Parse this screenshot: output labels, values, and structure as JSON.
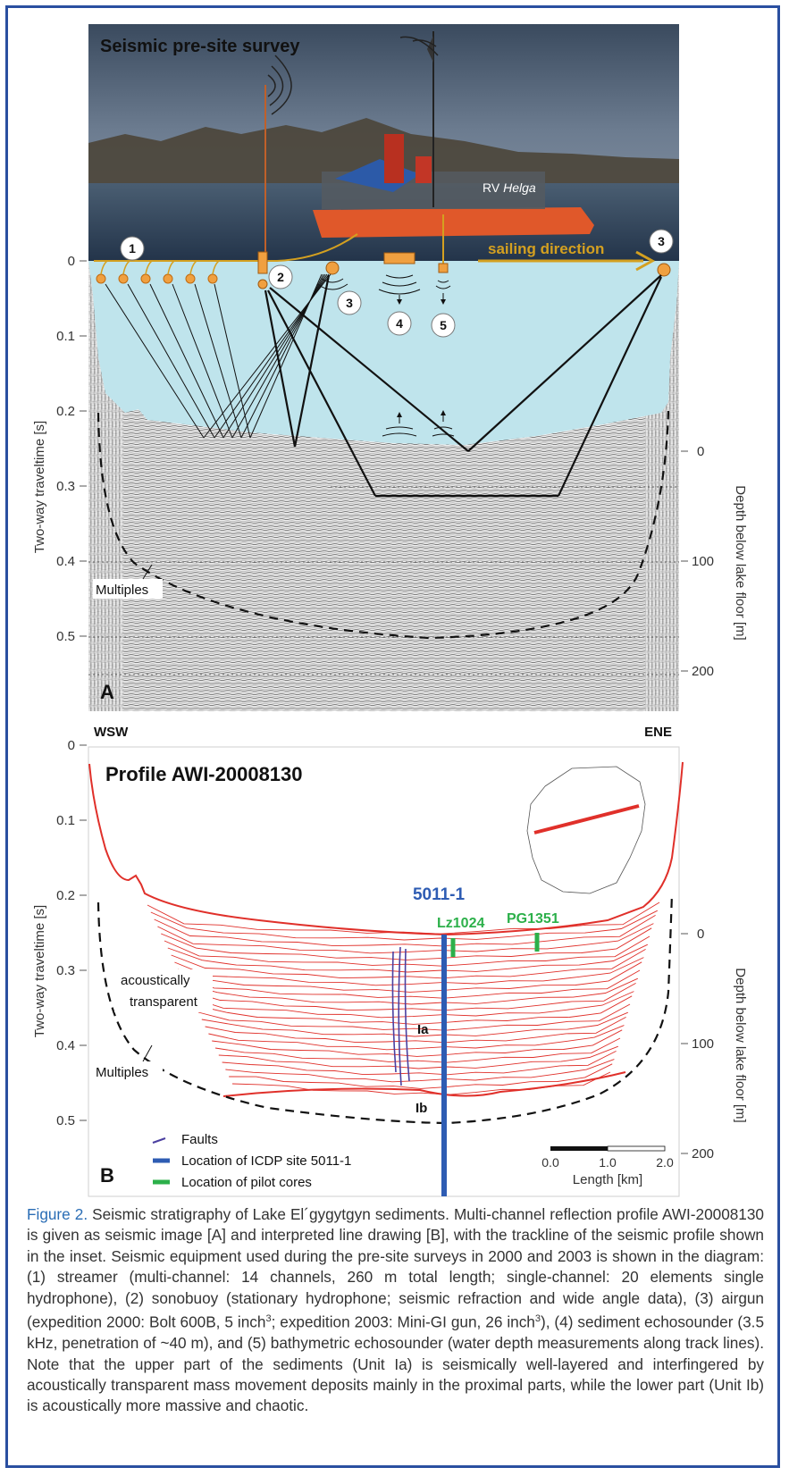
{
  "panel_a": {
    "photo_title": "Seismic pre-site survey",
    "boat_label_prefix": "RV ",
    "boat_label_name": "Helga",
    "sailing_direction": "sailing direction",
    "markers": [
      "1",
      "2",
      "3",
      "4",
      "5",
      "3"
    ],
    "multiples_label": "Multiples",
    "panel_letter": "A",
    "y_axis_label": "Two-way traveltime [s]",
    "y_ticks": [
      "0",
      "0.1",
      "0.2",
      "0.3",
      "0.4",
      "0.5"
    ],
    "depth_axis_label": "Depth below lake floor [m]",
    "depth_ticks": [
      "0",
      "100",
      "200"
    ]
  },
  "direction_labels": {
    "west": "WSW",
    "east": "ENE"
  },
  "panel_b": {
    "title": "Profile AWI-20008130",
    "site_label": "5011-1",
    "core_labels": [
      "Lz1024",
      "PG1351"
    ],
    "acoustic_label_line1": "acoustically",
    "acoustic_label_line2": "transparent",
    "multiples_label": "Multiples",
    "unit_ia": "Ia",
    "unit_ib": "Ib",
    "panel_letter": "B",
    "y_axis_label": "Two-way traveltime [s]",
    "y_ticks": [
      "0",
      "0.1",
      "0.2",
      "0.3",
      "0.4",
      "0.5"
    ],
    "depth_axis_label": "Depth below lake floor [m]",
    "depth_ticks": [
      "0",
      "100",
      "200"
    ],
    "legend": {
      "faults": "Faults",
      "icdp": "Location of ICDP site 5011-1",
      "pilot": "Location of pilot cores"
    },
    "scale_ticks": [
      "0.0",
      "1.0",
      "2.0"
    ],
    "scale_label": "Length [km]",
    "colors": {
      "reflector": "#e0302a",
      "site": "#2e5cb3",
      "core": "#2cb04a",
      "fault": "#4a3fa0",
      "water": "#bfe4ec"
    }
  },
  "caption": {
    "figure_label": "Figure 2.",
    "part1": " Seismic stratigraphy of Lake El´gygytgyn sediments. Multi-channel reflection profile AWI-20008130 is given as seismic image [A] and interpreted line drawing [B], with the trackline of the seismic profile shown in the inset. Seismic equipment used during the pre-site surveys in 2000 and 2003 is shown in the diagram: (1) streamer (multi-channel: 14 channels, 260 m total length; single-channel: 20 elements single hydrophone), (2) sonobuoy (stationary hydrophone; seismic refraction and wide angle data), (3) airgun (expedition 2000: Bolt 600B, 5 inch",
    "sup1": "3",
    "part2": "; expedition 2003: Mini-GI gun, 26 inch",
    "sup2": "3",
    "part3": "), (4) sediment echosounder (3.5 kHz, penetration of ~40 m), and (5) bathymetric echosounder (water depth measurements along track lines). Note that the upper part of the sediments (Unit Ia) is seismically well-layered and interfingered by acoustically transparent mass movement deposits mainly in the proximal parts, while the lower part (Unit Ib) is acoustically more massive and chaotic."
  }
}
